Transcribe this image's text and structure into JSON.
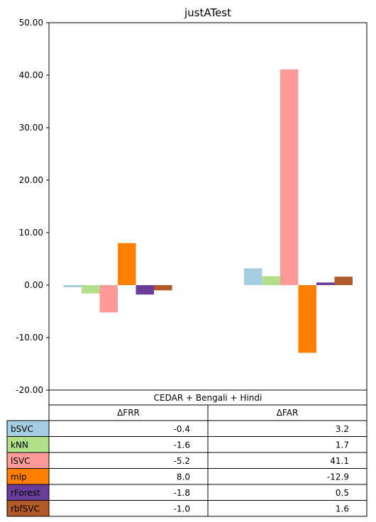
{
  "chart_data": {
    "type": "bar",
    "title": "justATest",
    "categories": [
      "ΔFRR",
      "ΔFAR"
    ],
    "group_label": "CEDAR + Bengali + Hindi",
    "ylim": [
      -20,
      50
    ],
    "yticks": [
      -20,
      -10,
      0,
      10,
      20,
      30,
      40,
      50
    ],
    "ytick_labels": [
      "-20.00",
      "-10.00",
      "0.00",
      "10.00",
      "20.00",
      "30.00",
      "40.00",
      "50.00"
    ],
    "series": [
      {
        "name": "bSVC",
        "values": [
          -0.4,
          3.2
        ],
        "labels": [
          "-0.4",
          "3.2"
        ],
        "color": "#a6cee3"
      },
      {
        "name": "kNN",
        "values": [
          -1.6,
          1.7
        ],
        "labels": [
          "-1.6",
          "1.7"
        ],
        "color": "#b2df8a"
      },
      {
        "name": "lSVC",
        "values": [
          -5.2,
          41.1
        ],
        "labels": [
          "-5.2",
          "41.1"
        ],
        "color": "#fb9a99"
      },
      {
        "name": "mlp",
        "values": [
          8.0,
          -12.9
        ],
        "labels": [
          "8.0",
          "-12.9"
        ],
        "color": "#ff7f00"
      },
      {
        "name": "rForest",
        "values": [
          -1.8,
          0.5
        ],
        "labels": [
          "-1.8",
          "0.5"
        ],
        "color": "#6a3d9a"
      },
      {
        "name": "rbfSVC",
        "values": [
          -1.0,
          1.6
        ],
        "labels": [
          "-1.0",
          "1.6"
        ],
        "color": "#b15928"
      }
    ],
    "grid": false
  }
}
